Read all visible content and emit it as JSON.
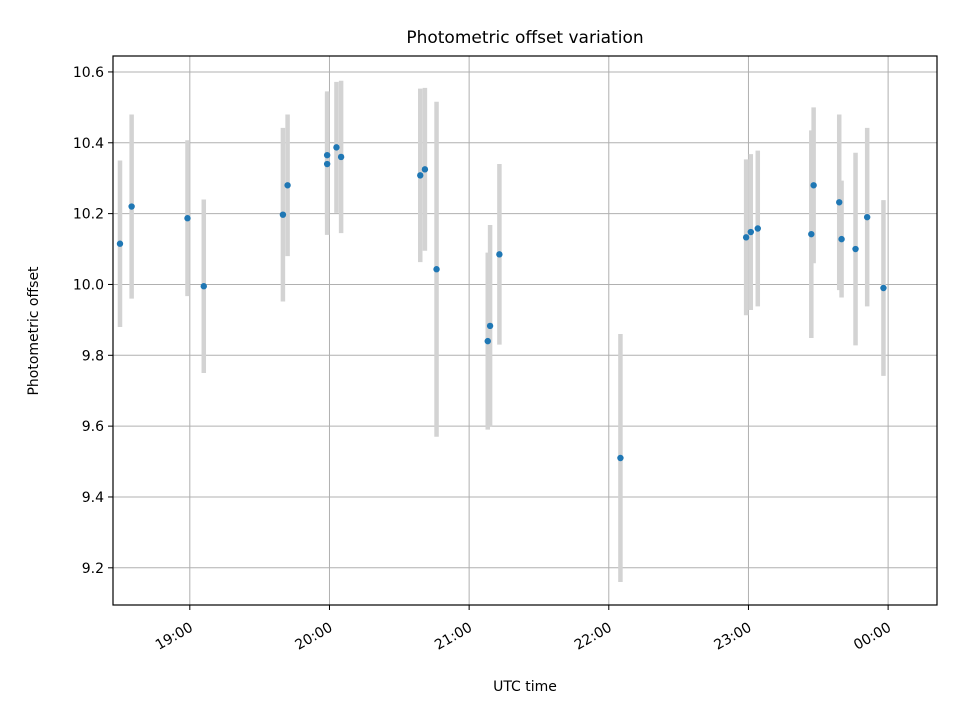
{
  "chart_data": {
    "type": "scatter",
    "title": "Photometric offset variation",
    "xlabel": "UTC time",
    "ylabel": "Photometric offset",
    "x_tick_labels": [
      "19:00",
      "20:00",
      "21:00",
      "22:00",
      "23:00",
      "00:00"
    ],
    "x_tick_values": [
      "19:00",
      "20:00",
      "21:00",
      "22:00",
      "23:00",
      "00:00"
    ],
    "y_ticks": [
      9.2,
      9.4,
      9.6,
      9.8,
      10.0,
      10.2,
      10.4,
      10.6
    ],
    "y_tick_labels": [
      "9.2",
      "9.4",
      "9.6",
      "9.8",
      "10.0",
      "10.2",
      "10.4",
      "10.6"
    ],
    "xlim": [
      "18:27",
      "00:21"
    ],
    "ylim": [
      9.095,
      10.645
    ],
    "grid": true,
    "colors": {
      "point": "#1f77b4",
      "errorbar": "#d3d3d3",
      "grid": "#b0b0b0"
    },
    "points": [
      {
        "time": "18:30",
        "y": 10.115,
        "err": 0.235
      },
      {
        "time": "18:35",
        "y": 10.22,
        "err": 0.26
      },
      {
        "time": "18:59",
        "y": 10.187,
        "err": 0.22
      },
      {
        "time": "19:06",
        "y": 9.995,
        "err": 0.245
      },
      {
        "time": "19:40",
        "y": 10.197,
        "err": 0.245
      },
      {
        "time": "19:42",
        "y": 10.28,
        "err": 0.2
      },
      {
        "time": "19:59",
        "y": 10.365,
        "err": 0.18
      },
      {
        "time": "19:59",
        "y": 10.34,
        "err": 0.2
      },
      {
        "time": "20:03",
        "y": 10.387,
        "err": 0.185
      },
      {
        "time": "20:05",
        "y": 10.36,
        "err": 0.215
      },
      {
        "time": "20:39",
        "y": 10.308,
        "err": 0.245
      },
      {
        "time": "20:41",
        "y": 10.325,
        "err": 0.23
      },
      {
        "time": "20:46",
        "y": 10.043,
        "err": 0.473
      },
      {
        "time": "21:08",
        "y": 9.84,
        "err": 0.25
      },
      {
        "time": "21:09",
        "y": 9.883,
        "err": 0.285
      },
      {
        "time": "21:13",
        "y": 10.085,
        "err": 0.255
      },
      {
        "time": "22:05",
        "y": 9.51,
        "err": 0.35
      },
      {
        "time": "22:59",
        "y": 10.133,
        "err": 0.22
      },
      {
        "time": "23:01",
        "y": 10.148,
        "err": 0.22
      },
      {
        "time": "23:04",
        "y": 10.158,
        "err": 0.22
      },
      {
        "time": "23:27",
        "y": 10.142,
        "err": 0.293
      },
      {
        "time": "23:28",
        "y": 10.28,
        "err": 0.22
      },
      {
        "time": "23:39",
        "y": 10.232,
        "err": 0.248
      },
      {
        "time": "23:40",
        "y": 10.128,
        "err": 0.165
      },
      {
        "time": "23:46",
        "y": 10.1,
        "err": 0.272
      },
      {
        "time": "23:51",
        "y": 10.19,
        "err": 0.252
      },
      {
        "time": "23:58",
        "y": 9.99,
        "err": 0.248
      }
    ]
  }
}
